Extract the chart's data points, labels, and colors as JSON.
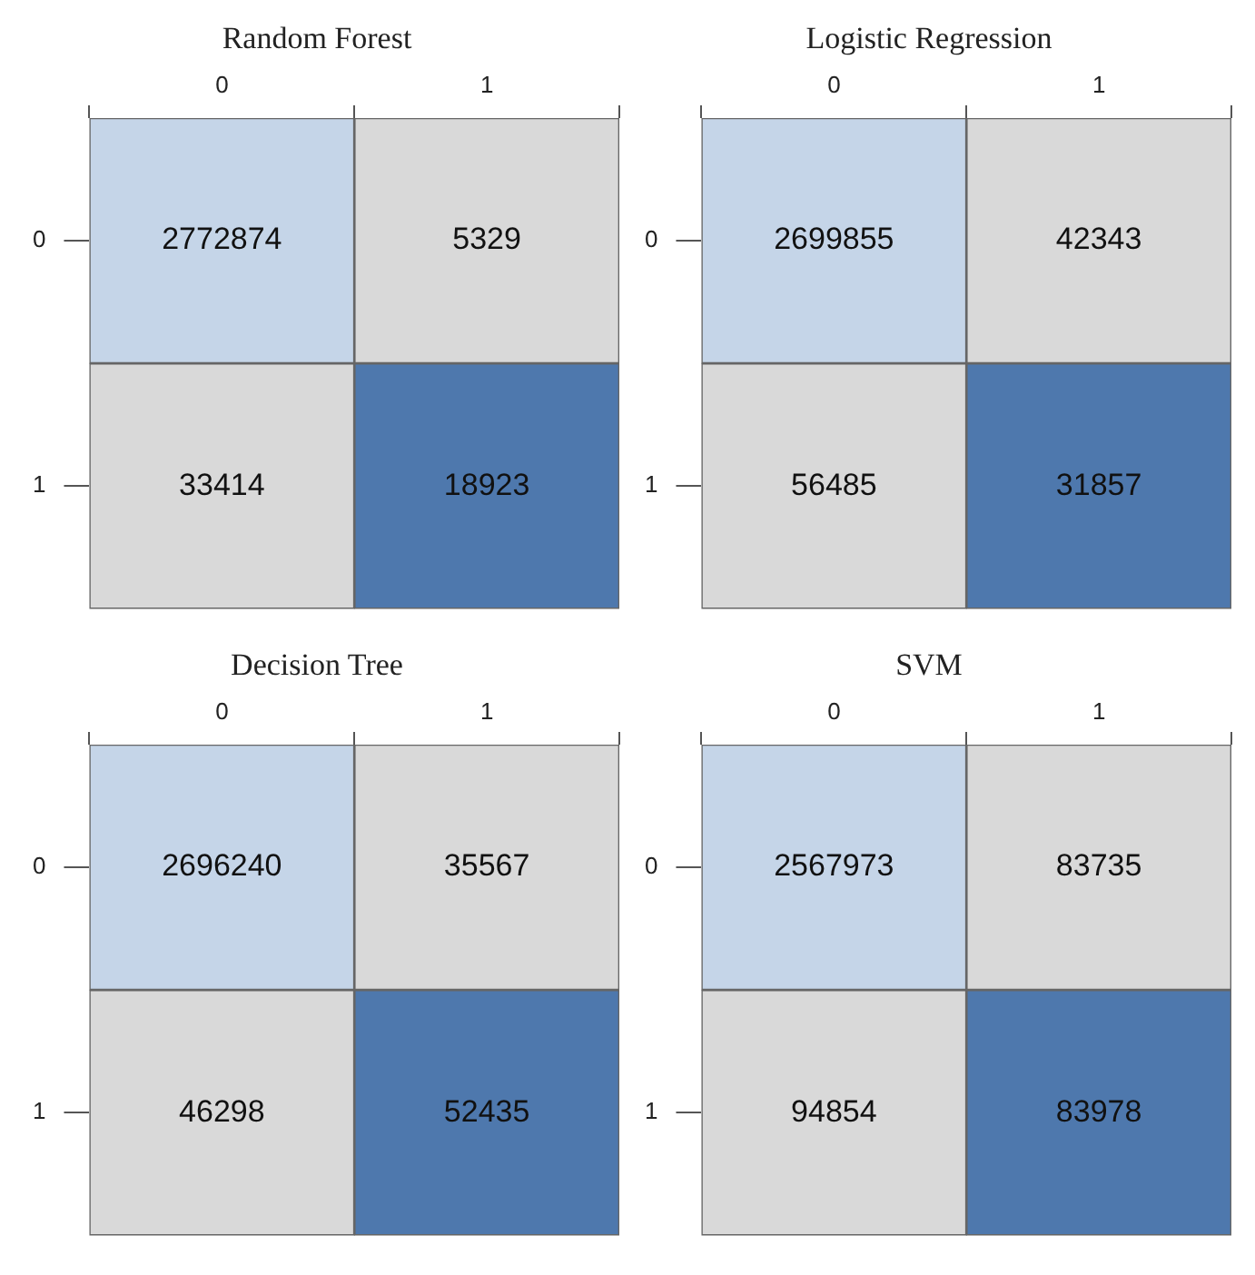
{
  "chart_data": [
    {
      "type": "heatmap",
      "title": "Random Forest",
      "categories": [
        "0",
        "1"
      ],
      "y_categories": [
        "0",
        "1"
      ],
      "cells": [
        [
          2772874,
          5329
        ],
        [
          33414,
          18923
        ]
      ],
      "colors": [
        [
          "#c5d5e8",
          "#d9d9d9"
        ],
        [
          "#d9d9d9",
          "#4e78ad"
        ]
      ],
      "data_labels": true
    },
    {
      "type": "heatmap",
      "title": "Logistic Regression",
      "categories": [
        "0",
        "1"
      ],
      "y_categories": [
        "0",
        "1"
      ],
      "cells": [
        [
          2699855,
          42343
        ],
        [
          56485,
          31857
        ]
      ],
      "colors": [
        [
          "#c5d5e8",
          "#d9d9d9"
        ],
        [
          "#d9d9d9",
          "#4e78ad"
        ]
      ],
      "data_labels": true
    },
    {
      "type": "heatmap",
      "title": "Decision Tree",
      "categories": [
        "0",
        "1"
      ],
      "y_categories": [
        "0",
        "1"
      ],
      "cells": [
        [
          2696240,
          35567
        ],
        [
          46298,
          52435
        ]
      ],
      "colors": [
        [
          "#c5d5e8",
          "#d9d9d9"
        ],
        [
          "#d9d9d9",
          "#4e78ad"
        ]
      ],
      "data_labels": true
    },
    {
      "type": "heatmap",
      "title": "SVM",
      "categories": [
        "0",
        "1"
      ],
      "y_categories": [
        "0",
        "1"
      ],
      "cells": [
        [
          2567973,
          83735
        ],
        [
          94854,
          83978
        ]
      ],
      "colors": [
        [
          "#c5d5e8",
          "#d9d9d9"
        ],
        [
          "#d9d9d9",
          "#4e78ad"
        ]
      ],
      "data_labels": true
    }
  ]
}
